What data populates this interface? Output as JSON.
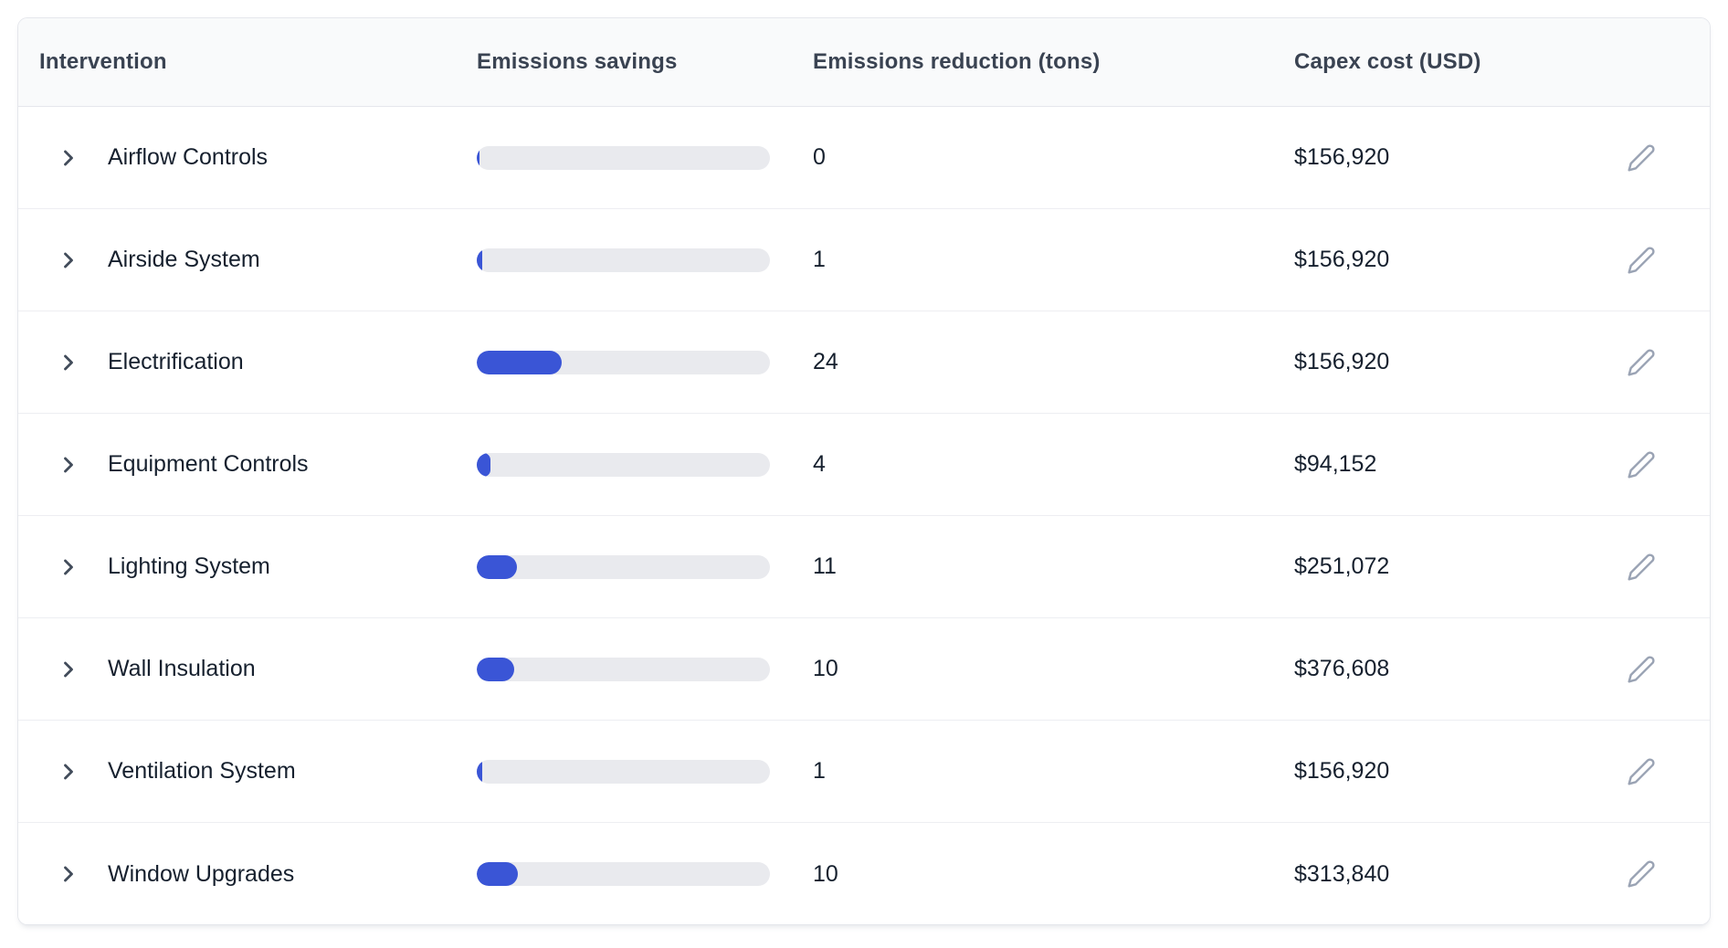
{
  "table": {
    "columns": [
      "Intervention",
      "Emissions savings",
      "Emissions reduction (tons)",
      "Capex cost (USD)"
    ],
    "rows": [
      {
        "name": "Airflow Controls",
        "bar_percent": 1,
        "reduction": "0",
        "capex": "$156,920"
      },
      {
        "name": "Airside System",
        "bar_percent": 2,
        "reduction": "1",
        "capex": "$156,920"
      },
      {
        "name": "Electrification",
        "bar_percent": 29,
        "reduction": "24",
        "capex": "$156,920"
      },
      {
        "name": "Equipment Controls",
        "bar_percent": 4.7,
        "reduction": "4",
        "capex": "$94,152"
      },
      {
        "name": "Lighting System",
        "bar_percent": 13.7,
        "reduction": "11",
        "capex": "$251,072"
      },
      {
        "name": "Wall Insulation",
        "bar_percent": 12.8,
        "reduction": "10",
        "capex": "$376,608"
      },
      {
        "name": "Ventilation System",
        "bar_percent": 1.9,
        "reduction": "1",
        "capex": "$156,920"
      },
      {
        "name": "Window Upgrades",
        "bar_percent": 14,
        "reduction": "10",
        "capex": "$313,840"
      }
    ],
    "icons": {
      "expand": "chevron-right-icon",
      "edit": "pencil-icon"
    },
    "colors": {
      "bar_fill": "#3a55d6",
      "bar_track": "#e9eaee",
      "header_bg": "#f9fafb",
      "header_text": "#3a4352",
      "row_text": "#16202e",
      "divider": "#edeef2",
      "icon_muted": "#9aa3b4",
      "chevron": "#414b5a"
    }
  }
}
